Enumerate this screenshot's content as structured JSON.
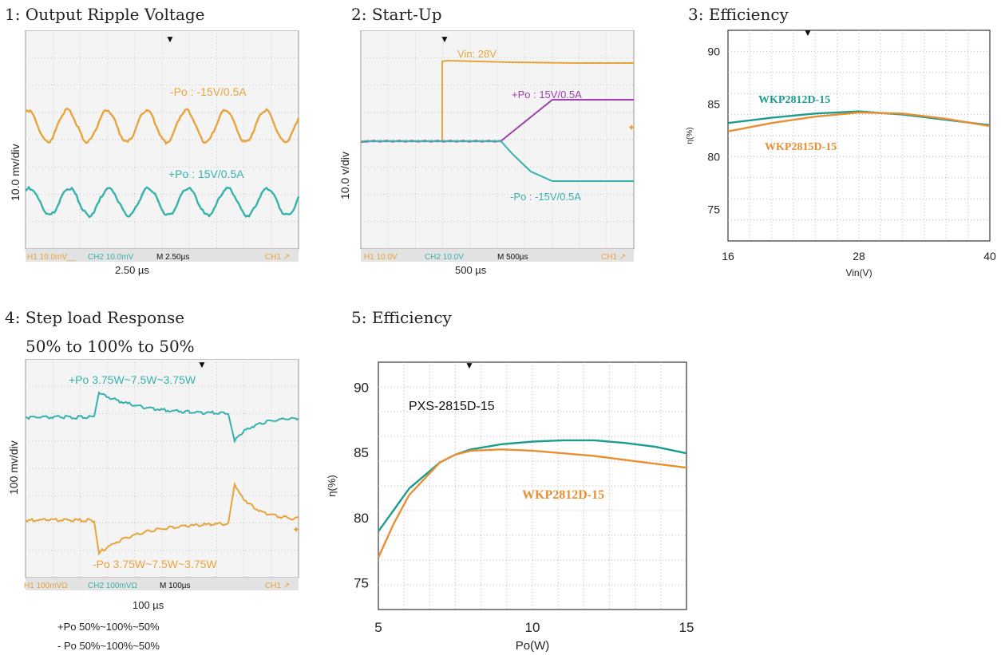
{
  "colors": {
    "orange": "#e8a43c",
    "teal": "#36b2ad",
    "purple": "#a13fb0",
    "scope_bg": "#f4f4f4",
    "grid": "#c8c8c8",
    "eff_orange": "#e98f33",
    "eff_teal": "#1c9c8e"
  },
  "panel1": {
    "title": "1: Output Ripple Voltage",
    "ylabel": "10.0 mv/div",
    "label_neg": "-Po : -15V/0.5A",
    "label_pos": "+Po : 15V/0.5A",
    "status": {
      "ch1": "H1  10.0mV__",
      "ch2": "CH2  10.0mV",
      "time": "M 2.50µs",
      "trig": "CH1 ↗"
    },
    "timebase": "2.50 µs"
  },
  "panel2": {
    "title": "2: Start-Up",
    "ylabel": "10.0 v/div",
    "label_vin": "Vin: 28V",
    "label_pos": "+Po : 15V/0.5A",
    "label_neg": "-Po : -15V/0.5A",
    "status": {
      "ch1": "H1  10.0V",
      "ch2": "CH2  10.0V",
      "time": "M 500µs",
      "trig": "CH1 ↗"
    },
    "timebase": "500 µs"
  },
  "panel4": {
    "title": "4: Step load Response",
    "subtitle": "50% to 100% to 50%",
    "ylabel": "100 mv/div",
    "label_pos": "+Po  3.75W~7.5W~3.75W",
    "label_neg": "-Po  3.75W~7.5W~3.75W",
    "status": {
      "ch1": "H1  100mVΩ",
      "ch2": "CH2  100mVΩ",
      "time": "M 100µs",
      "trig": "CH1 ↗"
    },
    "timebase": "100 µs",
    "note1": "+Po   50%~100%~50%",
    "note2": "- Po   50%~100%~50%"
  },
  "panel3": {
    "title": "3: Efficiency",
    "label_teal": "WKP2812D-15",
    "label_orange": "WKP2815D-15"
  },
  "panel5": {
    "title": "5: Efficiency",
    "label_teal": "PXS-2815D-15",
    "label_orange": "WKP2812D-15"
  },
  "chart_data": [
    {
      "type": "line",
      "title": "3: Efficiency",
      "xlabel": "Vin(V)",
      "ylabel": "η(%)",
      "x_ticks": [
        16,
        28,
        40
      ],
      "y_ticks": [
        75,
        80,
        85,
        90
      ],
      "xlim": [
        16,
        40
      ],
      "ylim": [
        72,
        92
      ],
      "grid": true,
      "series": [
        {
          "name": "WKP2812D-15",
          "color": "#1c9c8e",
          "x": [
            16,
            20,
            24,
            28,
            32,
            36,
            40
          ],
          "y": [
            83.2,
            83.7,
            84.1,
            84.3,
            84.0,
            83.5,
            83.0
          ]
        },
        {
          "name": "WKP2815D-15",
          "color": "#e98f33",
          "x": [
            16,
            20,
            24,
            28,
            32,
            36,
            40
          ],
          "y": [
            82.4,
            83.2,
            83.8,
            84.2,
            84.1,
            83.6,
            82.9
          ]
        }
      ]
    },
    {
      "type": "line",
      "title": "5: Efficiency",
      "xlabel": "Po(W)",
      "ylabel": "η(%)",
      "x_ticks": [
        5,
        10,
        15
      ],
      "y_ticks": [
        75,
        80,
        85,
        90
      ],
      "xlim": [
        5,
        15
      ],
      "ylim": [
        73,
        92
      ],
      "grid": true,
      "series": [
        {
          "name": "PXS-2815D-15",
          "color": "#1c9c8e",
          "x": [
            5,
            6,
            7,
            7.5,
            8,
            9,
            10,
            11,
            12,
            13,
            14,
            15
          ],
          "y": [
            79.0,
            82.3,
            84.3,
            84.9,
            85.3,
            85.7,
            85.9,
            86.0,
            86.0,
            85.8,
            85.5,
            85.0
          ]
        },
        {
          "name": "WKP2812D-15",
          "color": "#e98f33",
          "x": [
            5,
            5.5,
            6,
            7,
            7.5,
            8,
            9,
            10,
            11,
            12,
            13,
            14,
            15
          ],
          "y": [
            77.0,
            79.6,
            81.8,
            84.3,
            84.9,
            85.2,
            85.3,
            85.2,
            85.0,
            84.8,
            84.5,
            84.2,
            83.9
          ]
        }
      ]
    }
  ]
}
